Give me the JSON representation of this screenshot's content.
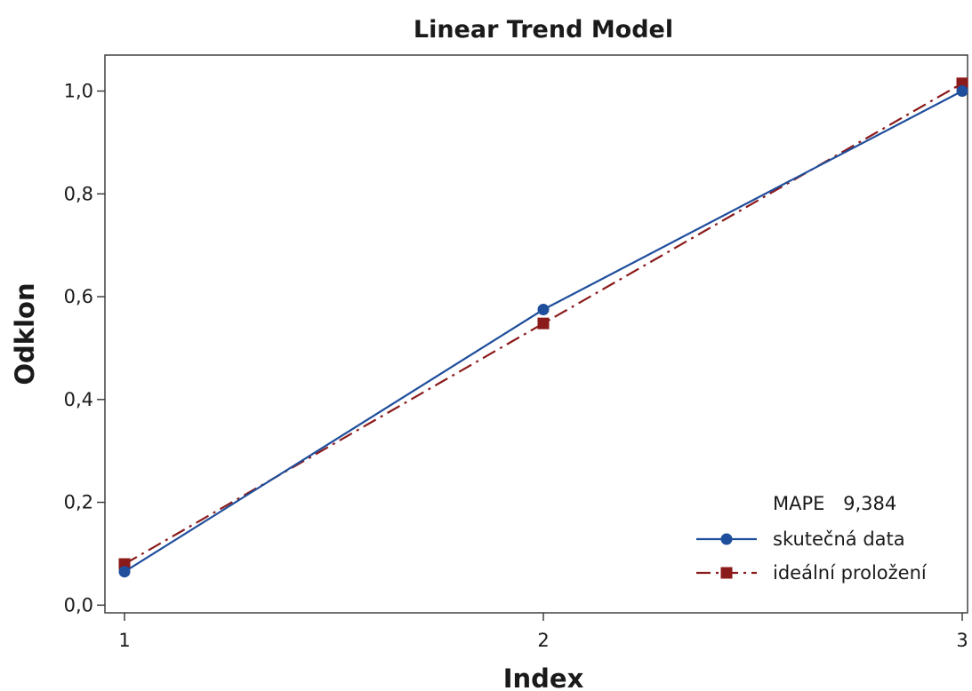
{
  "chart_data": {
    "type": "line",
    "title": "Linear Trend Model",
    "xlabel": "Index",
    "ylabel": "Odklon",
    "x": [
      1,
      2,
      3
    ],
    "x_ticks": [
      "1",
      "2",
      "3"
    ],
    "y_ticks": [
      "0,0",
      "0,2",
      "0,4",
      "0,6",
      "0,8",
      "1,0"
    ],
    "xlim": [
      1,
      3
    ],
    "ylim": [
      -0.015,
      1.07
    ],
    "grid": false,
    "legend_position": "bottom-right",
    "series": [
      {
        "name": "skutečná data",
        "values": [
          0.065,
          0.575,
          1.0
        ],
        "color": "#1f4e9c",
        "marker": "circle",
        "line_style": "solid"
      },
      {
        "name": "ideální proložení",
        "values": [
          0.08,
          0.548,
          1.015
        ],
        "color": "#8b1a1a",
        "marker": "square",
        "line_style": "dashed"
      }
    ],
    "annotation": {
      "label": "MAPE",
      "value": "9,384"
    }
  }
}
